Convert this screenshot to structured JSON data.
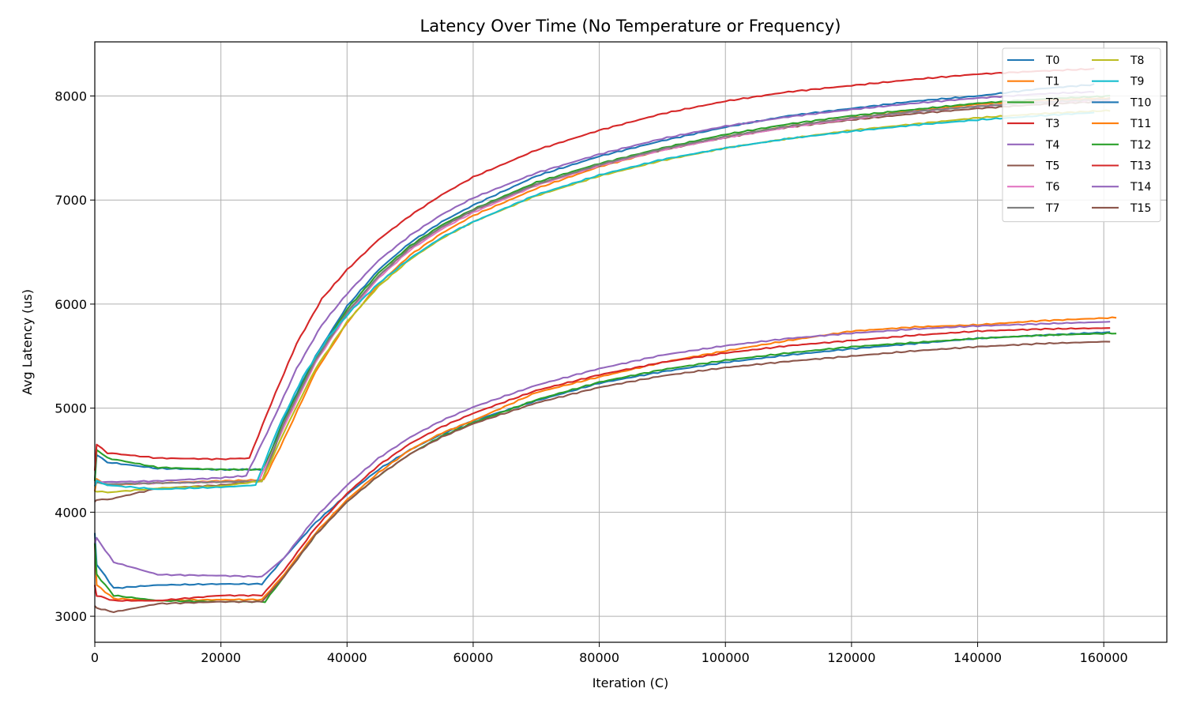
{
  "chart_data": {
    "type": "line",
    "title": "Latency Over Time (No Temperature or Frequency)",
    "xlabel": "Iteration (C)",
    "ylabel": "Avg Latency (us)",
    "xlim": [
      0,
      170000
    ],
    "ylim": [
      2750,
      8520
    ],
    "xticks": [
      0,
      20000,
      40000,
      60000,
      80000,
      100000,
      120000,
      140000,
      160000
    ],
    "yticks": [
      3000,
      4000,
      5000,
      6000,
      7000,
      8000
    ],
    "grid": true,
    "legend_position": "top-right",
    "legend_columns": 2,
    "series": [
      {
        "name": "T0",
        "color": "#1f77b4",
        "x": [
          0,
          300,
          2000,
          10000,
          20000,
          26800,
          30000,
          35000,
          40000,
          45000,
          50000,
          55000,
          60000,
          70000,
          80000,
          90000,
          100000,
          110000,
          120000,
          130000,
          140000,
          150000,
          158500
        ],
        "y": [
          4300,
          4550,
          4480,
          4420,
          4410,
          4410,
          4900,
          5500,
          5980,
          6330,
          6590,
          6790,
          6950,
          7230,
          7420,
          7570,
          7700,
          7810,
          7880,
          7950,
          8000,
          8070,
          8110
        ]
      },
      {
        "name": "T1",
        "color": "#ff7f0e",
        "x": [
          0,
          300,
          2000,
          10000,
          20000,
          26800,
          30000,
          35000,
          40000,
          45000,
          50000,
          55000,
          60000,
          70000,
          80000,
          90000,
          100000,
          110000,
          120000,
          130000,
          140000,
          150000,
          161000
        ],
        "y": [
          4200,
          4320,
          4260,
          4280,
          4300,
          4310,
          4700,
          5350,
          5820,
          6190,
          6470,
          6680,
          6850,
          7110,
          7320,
          7480,
          7610,
          7710,
          7790,
          7860,
          7920,
          7960,
          7980
        ]
      },
      {
        "name": "T2",
        "color": "#2ca02c",
        "x": [
          0,
          300,
          2000,
          10000,
          20000,
          26800,
          30000,
          35000,
          40000,
          45000,
          50000,
          55000,
          60000,
          70000,
          80000,
          90000,
          100000,
          110000,
          120000,
          130000,
          140000,
          150000,
          161000
        ],
        "y": [
          4300,
          4600,
          4520,
          4430,
          4410,
          4410,
          4880,
          5480,
          5950,
          6300,
          6560,
          6760,
          6910,
          7170,
          7350,
          7500,
          7630,
          7730,
          7810,
          7870,
          7930,
          7970,
          8000
        ]
      },
      {
        "name": "T3",
        "color": "#d62728",
        "x": [
          0,
          300,
          2000,
          10000,
          20000,
          24500,
          28000,
          32000,
          36000,
          40000,
          45000,
          50000,
          55000,
          60000,
          70000,
          80000,
          90000,
          100000,
          110000,
          120000,
          130000,
          140000,
          150000,
          158500
        ],
        "y": [
          4400,
          4650,
          4570,
          4520,
          4510,
          4520,
          5050,
          5620,
          6050,
          6330,
          6620,
          6850,
          7050,
          7220,
          7480,
          7670,
          7830,
          7950,
          8040,
          8100,
          8160,
          8210,
          8240,
          8260
        ]
      },
      {
        "name": "T4",
        "color": "#9467bd",
        "x": [
          0,
          300,
          2000,
          10000,
          20000,
          24000,
          28000,
          32000,
          36000,
          40000,
          45000,
          50000,
          55000,
          60000,
          70000,
          80000,
          90000,
          100000,
          110000,
          120000,
          130000,
          140000,
          150000,
          158500
        ],
        "y": [
          4280,
          4300,
          4290,
          4300,
          4330,
          4350,
          4850,
          5380,
          5800,
          6100,
          6420,
          6660,
          6860,
          7020,
          7260,
          7440,
          7590,
          7710,
          7800,
          7870,
          7930,
          7980,
          8020,
          8040
        ]
      },
      {
        "name": "T5",
        "color": "#8c564b",
        "x": [
          0,
          300,
          2000,
          10000,
          20000,
          26500,
          30000,
          35000,
          40000,
          45000,
          50000,
          55000,
          60000,
          70000,
          80000,
          90000,
          100000,
          110000,
          120000,
          130000,
          140000,
          150000,
          161000
        ],
        "y": [
          4100,
          4120,
          4120,
          4230,
          4260,
          4300,
          4850,
          5460,
          5920,
          6270,
          6540,
          6740,
          6900,
          7150,
          7330,
          7480,
          7600,
          7700,
          7770,
          7830,
          7880,
          7920,
          7950
        ]
      },
      {
        "name": "T6",
        "color": "#e377c2",
        "x": [
          0,
          300,
          2000,
          10000,
          20000,
          26000,
          30000,
          35000,
          40000,
          45000,
          50000,
          55000,
          60000,
          70000,
          80000,
          90000,
          100000,
          110000,
          120000,
          130000,
          140000,
          150000,
          161000
        ],
        "y": [
          4250,
          4300,
          4270,
          4280,
          4290,
          4300,
          4820,
          5440,
          5900,
          6250,
          6520,
          6720,
          6880,
          7140,
          7330,
          7480,
          7600,
          7700,
          7780,
          7850,
          7900,
          7940,
          7960
        ]
      },
      {
        "name": "T7",
        "color": "#7f7f7f",
        "x": [
          0,
          300,
          2000,
          10000,
          20000,
          26500,
          30000,
          35000,
          40000,
          45000,
          50000,
          55000,
          60000,
          70000,
          80000,
          90000,
          100000,
          110000,
          120000,
          130000,
          140000,
          150000,
          161000
        ],
        "y": [
          4250,
          4290,
          4270,
          4280,
          4290,
          4300,
          4860,
          5460,
          5920,
          6270,
          6540,
          6740,
          6900,
          7150,
          7340,
          7490,
          7610,
          7710,
          7790,
          7850,
          7900,
          7940,
          7970
        ]
      },
      {
        "name": "T8",
        "color": "#bcbd22",
        "x": [
          0,
          300,
          2000,
          10000,
          20000,
          26500,
          30000,
          35000,
          40000,
          45000,
          50000,
          55000,
          60000,
          70000,
          80000,
          90000,
          100000,
          110000,
          120000,
          130000,
          140000,
          150000,
          161000
        ],
        "y": [
          4200,
          4200,
          4190,
          4230,
          4250,
          4300,
          4770,
          5380,
          5830,
          6170,
          6430,
          6630,
          6790,
          7040,
          7230,
          7380,
          7500,
          7590,
          7670,
          7730,
          7790,
          7830,
          7860
        ]
      },
      {
        "name": "T9",
        "color": "#17becf",
        "x": [
          0,
          300,
          2000,
          10000,
          20000,
          25500,
          29000,
          33000,
          37000,
          41000,
          45000,
          50000,
          55000,
          60000,
          70000,
          80000,
          90000,
          100000,
          110000,
          120000,
          130000,
          140000,
          150000,
          158500
        ],
        "y": [
          4250,
          4300,
          4260,
          4220,
          4240,
          4260,
          4800,
          5300,
          5680,
          5960,
          6200,
          6440,
          6640,
          6790,
          7050,
          7240,
          7390,
          7500,
          7590,
          7660,
          7720,
          7770,
          7810,
          7840
        ]
      },
      {
        "name": "T10",
        "color": "#1f77b4",
        "x": [
          0,
          300,
          3000,
          10000,
          20000,
          26500,
          30000,
          35000,
          40000,
          45000,
          50000,
          55000,
          60000,
          70000,
          80000,
          90000,
          100000,
          110000,
          120000,
          130000,
          140000,
          150000,
          161000
        ],
        "y": [
          3800,
          3500,
          3270,
          3300,
          3310,
          3310,
          3560,
          3900,
          4170,
          4410,
          4600,
          4750,
          4880,
          5070,
          5240,
          5350,
          5440,
          5510,
          5570,
          5620,
          5670,
          5700,
          5730
        ]
      },
      {
        "name": "T11",
        "color": "#ff7f0e",
        "x": [
          0,
          300,
          3000,
          10000,
          20000,
          26500,
          30000,
          35000,
          40000,
          45000,
          50000,
          55000,
          60000,
          70000,
          80000,
          90000,
          100000,
          110000,
          120000,
          130000,
          140000,
          150000,
          162000
        ],
        "y": [
          3700,
          3300,
          3170,
          3150,
          3160,
          3160,
          3400,
          3800,
          4120,
          4380,
          4600,
          4760,
          4880,
          5150,
          5300,
          5440,
          5550,
          5650,
          5740,
          5780,
          5800,
          5840,
          5870
        ]
      },
      {
        "name": "T12",
        "color": "#2ca02c",
        "x": [
          0,
          300,
          3000,
          10000,
          20000,
          27000,
          30000,
          35000,
          40000,
          45000,
          50000,
          55000,
          60000,
          70000,
          80000,
          90000,
          100000,
          110000,
          120000,
          130000,
          140000,
          150000,
          162000
        ],
        "y": [
          3700,
          3400,
          3200,
          3150,
          3140,
          3140,
          3380,
          3780,
          4100,
          4350,
          4560,
          4730,
          4860,
          5080,
          5250,
          5370,
          5460,
          5530,
          5590,
          5630,
          5670,
          5700,
          5720
        ]
      },
      {
        "name": "T13",
        "color": "#d62728",
        "x": [
          0,
          300,
          3000,
          10000,
          20000,
          26500,
          30000,
          35000,
          40000,
          45000,
          50000,
          55000,
          60000,
          70000,
          80000,
          90000,
          100000,
          110000,
          120000,
          130000,
          140000,
          150000,
          161000
        ],
        "y": [
          3300,
          3200,
          3150,
          3150,
          3200,
          3200,
          3440,
          3850,
          4180,
          4450,
          4660,
          4820,
          4950,
          5170,
          5320,
          5440,
          5530,
          5600,
          5650,
          5700,
          5740,
          5760,
          5770
        ]
      },
      {
        "name": "T14",
        "color": "#9467bd",
        "x": [
          0,
          300,
          3000,
          10000,
          20000,
          26500,
          30000,
          35000,
          40000,
          45000,
          50000,
          55000,
          60000,
          70000,
          80000,
          90000,
          100000,
          110000,
          120000,
          130000,
          140000,
          150000,
          161000
        ],
        "y": [
          3700,
          3750,
          3520,
          3400,
          3390,
          3380,
          3560,
          3950,
          4260,
          4520,
          4720,
          4880,
          5010,
          5220,
          5380,
          5510,
          5600,
          5670,
          5720,
          5760,
          5790,
          5810,
          5830
        ]
      },
      {
        "name": "T15",
        "color": "#8c564b",
        "x": [
          0,
          300,
          3000,
          10000,
          20000,
          26500,
          30000,
          35000,
          40000,
          45000,
          50000,
          55000,
          60000,
          70000,
          80000,
          90000,
          100000,
          110000,
          120000,
          130000,
          140000,
          150000,
          161000
        ],
        "y": [
          3100,
          3080,
          3040,
          3120,
          3140,
          3140,
          3380,
          3780,
          4100,
          4350,
          4560,
          4720,
          4850,
          5050,
          5200,
          5310,
          5390,
          5450,
          5500,
          5550,
          5590,
          5620,
          5640
        ]
      }
    ]
  }
}
